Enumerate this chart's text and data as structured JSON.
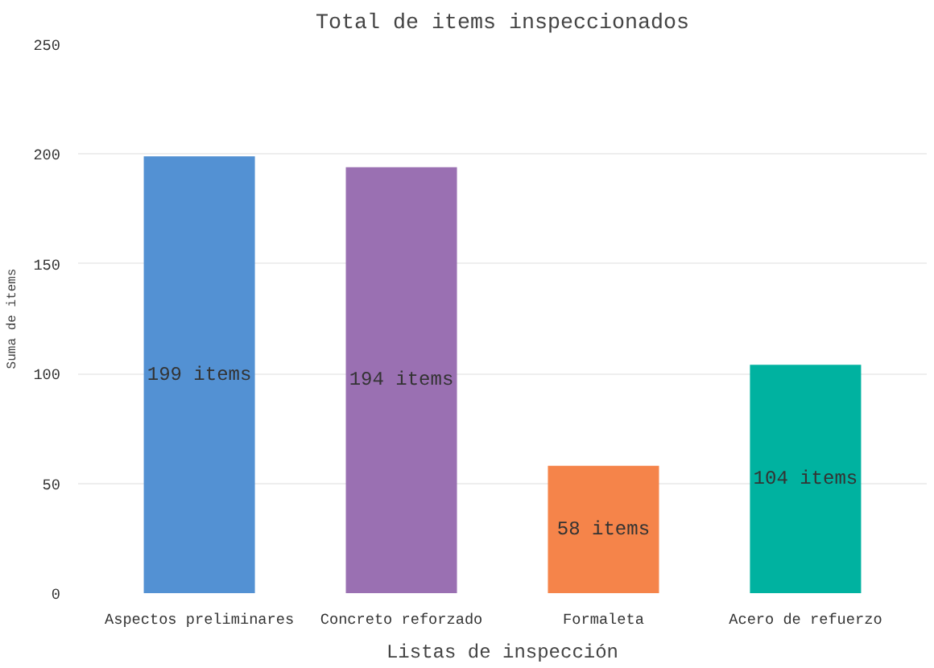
{
  "chart_data": {
    "type": "bar",
    "title": "Total de items inspeccionados",
    "xlabel": "Listas de inspección",
    "ylabel": "Suma de items",
    "categories": [
      "Aspectos preliminares",
      "Concreto reforzado",
      "Formaleta",
      "Acero de refuerzo"
    ],
    "values": [
      199,
      194,
      58,
      104
    ],
    "colors": [
      "#5391d3",
      "#9a70b2",
      "#f5844a",
      "#00b2a0"
    ],
    "value_labels": [
      "199 items",
      "194 items",
      "58 items",
      "104 items"
    ],
    "ylim": [
      0,
      250
    ],
    "yticks": [
      0,
      50,
      100,
      150,
      200,
      250
    ],
    "grid": "y"
  }
}
